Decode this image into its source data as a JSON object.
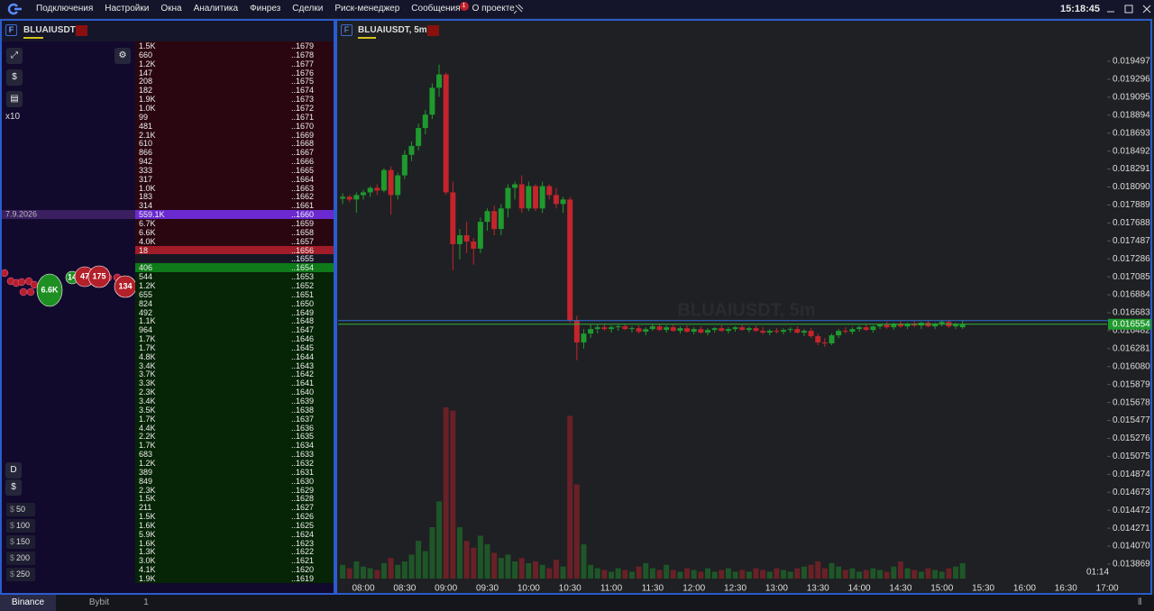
{
  "menu": {
    "items": [
      "Подключения",
      "Настройки",
      "Окна",
      "Аналитика",
      "Финрез",
      "Сделки",
      "Риск-менеджер",
      "Сообщения",
      "О проекте"
    ],
    "badge": "1",
    "clock": "15:18:45"
  },
  "left_panel": {
    "symbol": "BLUAIUSDT",
    "leverage": "x10",
    "date": "7.9.2026",
    "mode": "D",
    "currency": "$",
    "amounts": [
      50,
      100,
      150,
      200,
      250
    ],
    "trades": [
      {
        "label": "6.6K",
        "side": "buy"
      },
      {
        "label": "14",
        "side": "buy"
      },
      {
        "label": "47",
        "side": "sell"
      },
      {
        "label": "175",
        "side": "sell"
      },
      {
        "label": "134",
        "side": "sell"
      }
    ],
    "buy_color": "#1e8f22",
    "sell_color": "#b3202a"
  },
  "orderbook": {
    "asks": [
      [
        "1.5K",
        "..1679"
      ],
      [
        "660",
        "..1678"
      ],
      [
        "1.2K",
        "..1677"
      ],
      [
        "147",
        "..1676"
      ],
      [
        "208",
        "..1675"
      ],
      [
        "182",
        "..1674"
      ],
      [
        "1.9K",
        "..1673"
      ],
      [
        "1.0K",
        "..1672"
      ],
      [
        "99",
        "..1671"
      ],
      [
        "481",
        "..1670"
      ],
      [
        "2.1K",
        "..1669"
      ],
      [
        "610",
        "..1668"
      ],
      [
        "866",
        "..1667"
      ],
      [
        "942",
        "..1666"
      ],
      [
        "333",
        "..1665"
      ],
      [
        "317",
        "..1664"
      ],
      [
        "1.0K",
        "..1663"
      ],
      [
        "183",
        "..1662"
      ],
      [
        "314",
        "..1661"
      ],
      [
        "559.1K",
        "..1660"
      ],
      [
        "6.7K",
        "..1659"
      ],
      [
        "6.6K",
        "..1658"
      ],
      [
        "4.0K",
        "..1657"
      ],
      [
        "18",
        "..1656"
      ]
    ],
    "spread_price": "..1655",
    "bids": [
      [
        "406",
        "..1654"
      ],
      [
        "544",
        "..1653"
      ],
      [
        "1.2K",
        "..1652"
      ],
      [
        "655",
        "..1651"
      ],
      [
        "824",
        "..1650"
      ],
      [
        "492",
        "..1649"
      ],
      [
        "1.1K",
        "..1648"
      ],
      [
        "964",
        "..1647"
      ],
      [
        "1.7K",
        "..1646"
      ],
      [
        "1.7K",
        "..1645"
      ],
      [
        "4.8K",
        "..1644"
      ],
      [
        "3.4K",
        "..1643"
      ],
      [
        "3.7K",
        "..1642"
      ],
      [
        "3.3K",
        "..1641"
      ],
      [
        "2.3K",
        "..1640"
      ],
      [
        "3.4K",
        "..1639"
      ],
      [
        "3.5K",
        "..1638"
      ],
      [
        "1.7K",
        "..1637"
      ],
      [
        "4.4K",
        "..1636"
      ],
      [
        "2.2K",
        "..1635"
      ],
      [
        "1.7K",
        "..1634"
      ],
      [
        "683",
        "..1633"
      ],
      [
        "1.2K",
        "..1632"
      ],
      [
        "389",
        "..1631"
      ],
      [
        "849",
        "..1630"
      ],
      [
        "2.3K",
        "..1629"
      ],
      [
        "1.5K",
        "..1628"
      ],
      [
        "211",
        "..1627"
      ],
      [
        "1.5K",
        "..1626"
      ],
      [
        "1.6K",
        "..1625"
      ],
      [
        "5.9K",
        "..1624"
      ],
      [
        "1.6K",
        "..1623"
      ],
      [
        "1.3K",
        "..1622"
      ],
      [
        "3.0K",
        "..1621"
      ],
      [
        "4.1K",
        "..1620"
      ],
      [
        "1.9K",
        "..1619"
      ]
    ]
  },
  "chart_data": {
    "type": "candlestick",
    "title": "BLUAIUSDT, 5m",
    "watermark": "BLUAIUSDT, 5m",
    "countdown": "01:14",
    "up_color": "#1f9a2e",
    "down_color": "#c4242c",
    "x": [
      "07:45",
      "07:50",
      "07:55",
      "08:00",
      "08:05",
      "08:10",
      "08:15",
      "08:20",
      "08:25",
      "08:30",
      "08:35",
      "08:40",
      "08:45",
      "08:50",
      "08:55",
      "09:00",
      "09:05",
      "09:10",
      "09:15",
      "09:20",
      "09:25",
      "09:30",
      "09:35",
      "09:40",
      "09:45",
      "09:50",
      "09:55",
      "10:00",
      "10:05",
      "10:10",
      "10:15",
      "10:20",
      "10:25",
      "10:30",
      "10:35",
      "10:40",
      "10:45",
      "10:50",
      "10:55",
      "11:00",
      "11:05",
      "11:10",
      "11:15",
      "11:20",
      "11:25",
      "11:30",
      "11:35",
      "11:40",
      "11:45",
      "11:50",
      "11:55",
      "12:00",
      "12:05",
      "12:10",
      "12:15",
      "12:20",
      "12:25",
      "12:30",
      "12:35",
      "12:40",
      "12:45",
      "12:50",
      "12:55",
      "13:00",
      "13:05",
      "13:10",
      "13:15",
      "13:20",
      "13:25",
      "13:30",
      "13:35",
      "13:40",
      "13:45",
      "13:50",
      "13:55",
      "14:00",
      "14:05",
      "14:10",
      "14:15",
      "14:20",
      "14:25",
      "14:30",
      "14:35",
      "14:40",
      "14:45",
      "14:50",
      "14:55",
      "15:00",
      "15:05",
      "15:10",
      "15:15"
    ],
    "ohlc": [
      [
        0.01796,
        0.01802,
        0.0179,
        0.01798
      ],
      [
        0.01798,
        0.018,
        0.01792,
        0.01795
      ],
      [
        0.01795,
        0.01803,
        0.0178,
        0.018
      ],
      [
        0.018,
        0.01806,
        0.01795,
        0.01803
      ],
      [
        0.01803,
        0.0181,
        0.01798,
        0.01808
      ],
      [
        0.01808,
        0.01812,
        0.018,
        0.01805
      ],
      [
        0.01805,
        0.0183,
        0.01803,
        0.01828
      ],
      [
        0.01828,
        0.01832,
        0.01778,
        0.018
      ],
      [
        0.018,
        0.01825,
        0.01795,
        0.01822
      ],
      [
        0.01822,
        0.0185,
        0.01818,
        0.01845
      ],
      [
        0.01845,
        0.0186,
        0.01838,
        0.01855
      ],
      [
        0.01855,
        0.0188,
        0.0185,
        0.01875
      ],
      [
        0.01875,
        0.01895,
        0.01868,
        0.0189
      ],
      [
        0.0189,
        0.01925,
        0.01885,
        0.0192
      ],
      [
        0.0192,
        0.01946,
        0.0191,
        0.01935
      ],
      [
        0.01935,
        0.01937,
        0.018,
        0.01803
      ],
      [
        0.01803,
        0.01815,
        0.01716,
        0.01745
      ],
      [
        0.01745,
        0.01762,
        0.01728,
        0.01755
      ],
      [
        0.01755,
        0.0177,
        0.01735,
        0.01748
      ],
      [
        0.01748,
        0.01752,
        0.01722,
        0.0174
      ],
      [
        0.0174,
        0.01775,
        0.01735,
        0.0177
      ],
      [
        0.0177,
        0.01785,
        0.0176,
        0.01782
      ],
      [
        0.01782,
        0.01788,
        0.01755,
        0.01762
      ],
      [
        0.01762,
        0.0179,
        0.01755,
        0.01785
      ],
      [
        0.01785,
        0.01812,
        0.01775,
        0.01808
      ],
      [
        0.01808,
        0.01815,
        0.01795,
        0.01812
      ],
      [
        0.01812,
        0.01822,
        0.0178,
        0.01785
      ],
      [
        0.01785,
        0.01815,
        0.01782,
        0.0181
      ],
      [
        0.0181,
        0.01812,
        0.01782,
        0.01785
      ],
      [
        0.01785,
        0.01815,
        0.0178,
        0.0181
      ],
      [
        0.0181,
        0.01812,
        0.01795,
        0.018
      ],
      [
        0.018,
        0.01808,
        0.01785,
        0.0179
      ],
      [
        0.0179,
        0.01798,
        0.0178,
        0.01795
      ],
      [
        0.01795,
        0.01798,
        0.01657,
        0.0166
      ],
      [
        0.0166,
        0.01665,
        0.01615,
        0.01635
      ],
      [
        0.01635,
        0.0165,
        0.01628,
        0.01645
      ],
      [
        0.01645,
        0.01655,
        0.0164,
        0.0165
      ],
      [
        0.0165,
        0.01655,
        0.01645,
        0.01652
      ],
      [
        0.01652,
        0.01656,
        0.01648,
        0.0165
      ],
      [
        0.0165,
        0.01654,
        0.01646,
        0.01652
      ],
      [
        0.01652,
        0.01655,
        0.01648,
        0.01653
      ],
      [
        0.01653,
        0.01656,
        0.01649,
        0.0165
      ],
      [
        0.0165,
        0.01653,
        0.01646,
        0.01651
      ],
      [
        0.01651,
        0.01654,
        0.01645,
        0.01647
      ],
      [
        0.01647,
        0.01652,
        0.01643,
        0.0165
      ],
      [
        0.0165,
        0.01655,
        0.01648,
        0.01653
      ],
      [
        0.01653,
        0.01656,
        0.01648,
        0.01649
      ],
      [
        0.01649,
        0.01654,
        0.01646,
        0.01652
      ],
      [
        0.01652,
        0.01655,
        0.01647,
        0.01648
      ],
      [
        0.01648,
        0.01653,
        0.01645,
        0.01651
      ],
      [
        0.01651,
        0.01654,
        0.01646,
        0.01647
      ],
      [
        0.01647,
        0.01652,
        0.01644,
        0.0165
      ],
      [
        0.0165,
        0.01653,
        0.01645,
        0.01646
      ],
      [
        0.01646,
        0.01651,
        0.01643,
        0.01649
      ],
      [
        0.01649,
        0.01652,
        0.01646,
        0.01651
      ],
      [
        0.01651,
        0.01654,
        0.01647,
        0.01648
      ],
      [
        0.01648,
        0.01652,
        0.01645,
        0.0165
      ],
      [
        0.0165,
        0.01653,
        0.01647,
        0.01652
      ],
      [
        0.01652,
        0.01655,
        0.01648,
        0.01649
      ],
      [
        0.01649,
        0.01653,
        0.01646,
        0.01651
      ],
      [
        0.01651,
        0.01654,
        0.01647,
        0.01648
      ],
      [
        0.01648,
        0.01652,
        0.01644,
        0.01646
      ],
      [
        0.01646,
        0.0165,
        0.01643,
        0.01648
      ],
      [
        0.01648,
        0.01651,
        0.01645,
        0.01647
      ],
      [
        0.01647,
        0.01651,
        0.01644,
        0.01649
      ],
      [
        0.01649,
        0.01652,
        0.01646,
        0.0165
      ],
      [
        0.0165,
        0.01653,
        0.01645,
        0.01646
      ],
      [
        0.01646,
        0.0165,
        0.01642,
        0.01648
      ],
      [
        0.01648,
        0.01651,
        0.0164,
        0.01642
      ],
      [
        0.01642,
        0.01645,
        0.01632,
        0.01635
      ],
      [
        0.01635,
        0.0164,
        0.0163,
        0.01634
      ],
      [
        0.01634,
        0.01645,
        0.01632,
        0.01643
      ],
      [
        0.01643,
        0.0165,
        0.0164,
        0.01648
      ],
      [
        0.01648,
        0.01652,
        0.01645,
        0.01647
      ],
      [
        0.01647,
        0.01652,
        0.01644,
        0.0165
      ],
      [
        0.0165,
        0.01654,
        0.01647,
        0.01652
      ],
      [
        0.01652,
        0.01655,
        0.01648,
        0.01649
      ],
      [
        0.01649,
        0.01654,
        0.01646,
        0.01653
      ],
      [
        0.01653,
        0.01656,
        0.0165,
        0.01655
      ],
      [
        0.01655,
        0.01658,
        0.0165,
        0.01652
      ],
      [
        0.01652,
        0.01657,
        0.01649,
        0.01656
      ],
      [
        0.01656,
        0.01659,
        0.01651,
        0.01653
      ],
      [
        0.01653,
        0.01657,
        0.0165,
        0.01656
      ],
      [
        0.01656,
        0.01659,
        0.01652,
        0.01654
      ],
      [
        0.01654,
        0.01658,
        0.0165,
        0.01657
      ],
      [
        0.01657,
        0.0166,
        0.01652,
        0.01653
      ],
      [
        0.01653,
        0.01657,
        0.0165,
        0.01656
      ],
      [
        0.01656,
        0.0166,
        0.01653,
        0.01658
      ],
      [
        0.01658,
        0.0166,
        0.01651,
        0.01653
      ],
      [
        0.01653,
        0.01657,
        0.0165,
        0.01655
      ],
      [
        0.01652,
        0.0166,
        0.0165,
        0.01655
      ]
    ],
    "volume": [
      8,
      6,
      10,
      7,
      6,
      5,
      9,
      12,
      8,
      10,
      14,
      22,
      16,
      30,
      45,
      100,
      98,
      30,
      22,
      18,
      25,
      20,
      15,
      12,
      14,
      10,
      12,
      9,
      10,
      8,
      6,
      11,
      7,
      95,
      55,
      20,
      8,
      6,
      5,
      4,
      6,
      5,
      4,
      7,
      9,
      6,
      5,
      8,
      5,
      4,
      6,
      5,
      4,
      6,
      4,
      5,
      6,
      4,
      5,
      4,
      6,
      5,
      4,
      6,
      5,
      4,
      6,
      7,
      8,
      10,
      6,
      9,
      7,
      5,
      6,
      4,
      5,
      6,
      5,
      4,
      7,
      10,
      6,
      5,
      4,
      6,
      5,
      4,
      6,
      7,
      9
    ],
    "volume_lim": [
      0,
      100
    ],
    "ylim": [
      0.013546,
      0.019719
    ],
    "yticks": [
      0.019497,
      0.019296,
      0.019095,
      0.018894,
      0.018693,
      0.018492,
      0.018291,
      {
        "value": 0.01809,
        "label": "0.018090"
      },
      0.017889,
      0.017688,
      0.017487,
      0.017286,
      0.017085,
      0.016884,
      0.016683,
      0.016482,
      0.016281,
      {
        "value": 0.01608,
        "label": "0.016080"
      },
      0.015879,
      0.015678,
      0.015477,
      0.015276,
      0.015075,
      0.014874,
      0.014673,
      0.014472,
      0.014271,
      {
        "value": 0.01407,
        "label": "0.014070"
      },
      0.013869
    ],
    "xticks": [
      "08:00",
      "08:30",
      "09:00",
      "09:30",
      "10:00",
      "10:30",
      "11:00",
      "11:30",
      "12:00",
      "12:30",
      "13:00",
      "13:30",
      "14:00",
      "14:30",
      "15:00",
      "15:30",
      "16:00",
      "16:30",
      "17:00"
    ],
    "last_price": 0.016554
  },
  "bottom_bar": {
    "tabs": [
      "Binance",
      "Bybit",
      "1"
    ]
  }
}
